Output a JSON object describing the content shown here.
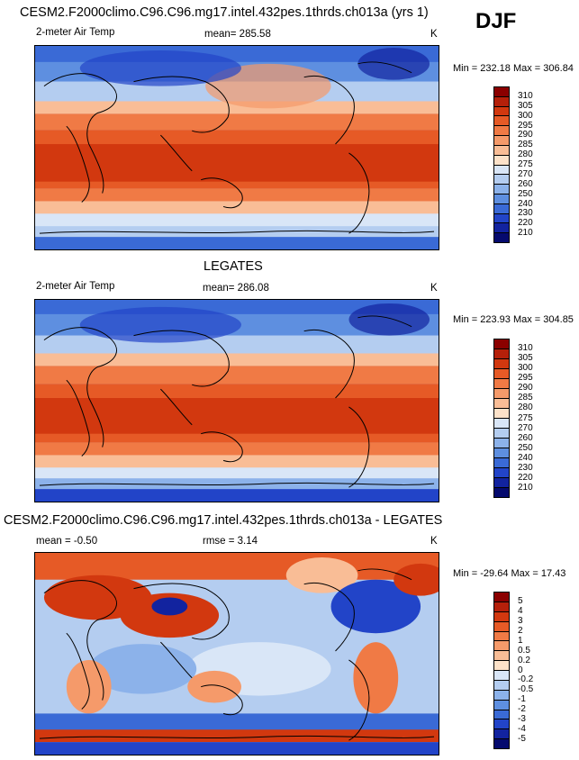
{
  "season": "DJF",
  "panel1": {
    "title": "CESM2.F2000climo.C96.C96.mg17.intel.432pes.1thrds.ch013a (yrs 1)",
    "var_label": "2-meter Air Temp",
    "mean_label": "mean= 285.58",
    "units": "K",
    "minmax": "Min = 232.18 Max = 306.84"
  },
  "panel2": {
    "title": "LEGATES",
    "var_label": "2-meter Air Temp",
    "mean_label": "mean= 286.08",
    "units": "K",
    "minmax": "Min = 223.93 Max = 304.85"
  },
  "panel3": {
    "title": "CESM2.F2000climo.C96.C96.mg17.intel.432pes.1thrds.ch013a - LEGATES",
    "mean_label": "mean = -0.50",
    "rmse_label": "rmse = 3.14",
    "units": "K",
    "minmax": "Min = -29.64 Max = 17.43"
  },
  "colorbar_temp": {
    "labels": [
      "310",
      "305",
      "300",
      "295",
      "290",
      "285",
      "280",
      "275",
      "270",
      "260",
      "250",
      "240",
      "230",
      "220",
      "210"
    ],
    "colors": [
      "#8b0000",
      "#b5200a",
      "#d2380f",
      "#e65a26",
      "#f07a45",
      "#f59a6a",
      "#f9bd96",
      "#fde2c9",
      "#d9e6f7",
      "#b4cdf0",
      "#8cb2ea",
      "#5e8fe0",
      "#3a6ad6",
      "#2244c8",
      "#12239f",
      "#050a6e"
    ]
  },
  "colorbar_diff": {
    "labels": [
      "5",
      "4",
      "3",
      "2",
      "1",
      "0.5",
      "0.2",
      "0",
      "-0.2",
      "-0.5",
      "-1",
      "-2",
      "-3",
      "-4",
      "-5"
    ],
    "colors": [
      "#8b0000",
      "#b5200a",
      "#d2380f",
      "#e65a26",
      "#f07a45",
      "#f59a6a",
      "#f9bd96",
      "#fde2c9",
      "#d9e6f7",
      "#b4cdf0",
      "#8cb2ea",
      "#5e8fe0",
      "#3a6ad6",
      "#2244c8",
      "#12239f",
      "#050a6e"
    ]
  }
}
